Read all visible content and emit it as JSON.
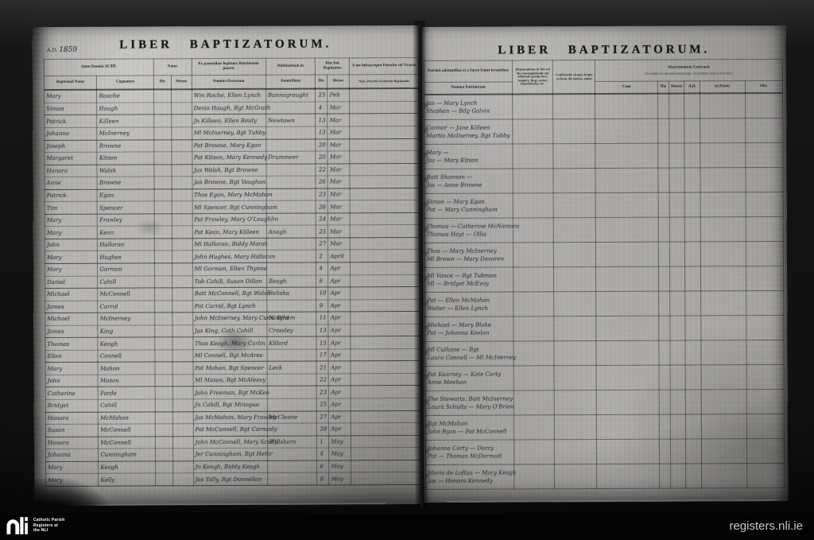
{
  "colors": {
    "paper": "#b3b1ae",
    "background": "#0b0b0b",
    "footer_bar": "#040404"
  },
  "left_page": {
    "ad_label": "A.D.",
    "ad_value": "1859",
    "title": "LIBER BAPTIZATORUM.",
    "header": {
      "anno_printed": "Anno Domini 18",
      "anno_hand": "59.",
      "natus_group": "Natus",
      "die": "Die",
      "mense": "Mense",
      "col_name": "Baptismal Name",
      "col_surname": "Cognomen",
      "parents_group": "Ex parentibus legitimis Matrimonio junctis",
      "parents_sub": "Nomina Parentum",
      "habit_group": "Habitantium in",
      "domicile_sub": "Domicilium",
      "rite_group": "Rite fuit Baptizatus",
      "minister_group": "A me infrascripto Parocho vel Vicario",
      "minister_sub": "Nom. Parochi vel alterius Baptizantis"
    },
    "rows": [
      {
        "name": "Mary",
        "surname": "Roache",
        "parents": "Wm Roche, Ellen Lynch",
        "domicile": "Bunnagraught",
        "die": "25",
        "mense": "Feb"
      },
      {
        "name": "Simon",
        "surname": "Haugh",
        "parents": "Denis Haugh, Bgt McGrath",
        "domicile": "",
        "die": "4",
        "mense": "Mar"
      },
      {
        "name": "Patrick",
        "surname": "Killeen",
        "parents": "Jn Killeen, Ellen Reidy",
        "domicile": "Newtown",
        "die": "13",
        "mense": "Mar"
      },
      {
        "name": "Johanna",
        "surname": "McInerney",
        "parents": "Ml McInerney, Bgt Tubby",
        "domicile": "",
        "die": "13",
        "mense": "Mar"
      },
      {
        "name": "Joseph",
        "surname": "Browne",
        "parents": "Pat Browne, Mary Egan",
        "domicile": "",
        "die": "20",
        "mense": "Mar"
      },
      {
        "name": "Margaret",
        "surname": "Kitson",
        "parents": "Pat Kitson, Mary Kennedy",
        "domicile": "Drummeer",
        "die": "20",
        "mense": "Mar"
      },
      {
        "name": "Hanora",
        "surname": "Walsh",
        "parents": "Jas Walsh, Bgt Browne",
        "domicile": "",
        "die": "22",
        "mense": "Mar"
      },
      {
        "name": "Anne",
        "surname": "Browne",
        "parents": "Jas Browne, Bgt Vaughan",
        "domicile": "",
        "die": "26",
        "mense": "Mar"
      },
      {
        "name": "Patrick",
        "surname": "Egan",
        "parents": "Thos Egan, Mary McMahon",
        "domicile": "",
        "die": "23",
        "mense": "Mar"
      },
      {
        "name": "Tim",
        "surname": "Spencer",
        "parents": "Ml Spencer, Bgt Cunningham",
        "domicile": "",
        "die": "26",
        "mense": "Mar"
      },
      {
        "name": "Mary",
        "surname": "Frawley",
        "parents": "Pat Frawley, Mary O'Loughlin",
        "domicile": "",
        "die": "24",
        "mense": "Mar"
      },
      {
        "name": "Mary",
        "surname": "Kean",
        "parents": "Pat Kean, Mary Killeen",
        "domicile": "Anagh",
        "die": "25",
        "mense": "Mar"
      },
      {
        "name": "John",
        "surname": "Halloran",
        "parents": "Ml Halloran, Biddy Marsh",
        "domicile": "",
        "die": "27",
        "mense": "Mar"
      },
      {
        "name": "Mary",
        "surname": "Hughes",
        "parents": "John Hughes, Mary Halloran",
        "domicile": "",
        "die": "2",
        "mense": "April"
      },
      {
        "name": "Mary",
        "surname": "Gorman",
        "parents": "Ml Gorman, Ellen Thynne",
        "domicile": "",
        "die": "4",
        "mense": "Apr"
      },
      {
        "name": "Daniel",
        "surname": "Cahill",
        "parents": "Tob Cahill, Susan Dillon",
        "domicile": "Beagh",
        "die": "6",
        "mense": "Apr"
      },
      {
        "name": "Michael",
        "surname": "McConnell",
        "parents": "Batt McConnell, Bgt Walsh",
        "domicile": "Relisha",
        "die": "10",
        "mense": "Apr"
      },
      {
        "name": "James",
        "surname": "Carrol",
        "parents": "Pat Carrol, Bgt Lynch",
        "domicile": "",
        "die": "9",
        "mense": "Apr"
      },
      {
        "name": "Michael",
        "surname": "McInerney",
        "parents": "John McInerney, Mary Cunningham",
        "domicile": "N. Bird",
        "die": "11",
        "mense": "Apr"
      },
      {
        "name": "James",
        "surname": "King",
        "parents": "Jas King, Cath Cahill",
        "domicile": "Crossley",
        "die": "13",
        "mense": "Apr"
      },
      {
        "name": "Thomas",
        "surname": "Keogh",
        "parents": "Thos Keogh, Mary Carlin",
        "domicile": "Killard",
        "die": "15",
        "mense": "Apr"
      },
      {
        "name": "Ellen",
        "surname": "Connell",
        "parents": "Ml Connell, Bgt McAree",
        "domicile": "",
        "die": "17",
        "mense": "Apr"
      },
      {
        "name": "Mary",
        "surname": "Mahon",
        "parents": "Pat Mahon, Bgt Spencer",
        "domicile": "Leck",
        "die": "21",
        "mense": "Apr"
      },
      {
        "name": "John",
        "surname": "Mason",
        "parents": "Ml Mason, Bgt McAleavy",
        "domicile": "",
        "die": "22",
        "mense": "Apr"
      },
      {
        "name": "Catherine",
        "surname": "Forde",
        "parents": "John Freeman, Bgt McKee",
        "domicile": "",
        "die": "23",
        "mense": "Apr"
      },
      {
        "name": "Bridget",
        "surname": "Cahill",
        "parents": "Jn Cahill, Bgt Minogue",
        "domicile": "",
        "die": "25",
        "mense": "Apr"
      },
      {
        "name": "Honora",
        "surname": "McMahon",
        "parents": "Jas McMahon, Mary Frawley",
        "domicile": "McCleane",
        "die": "27",
        "mense": "Apr"
      },
      {
        "name": "Susan",
        "surname": "McConnell",
        "parents": "Pat McConnell, Bgt Carmody",
        "domicile": "",
        "die": "28",
        "mense": "Apr"
      },
      {
        "name": "Honora",
        "surname": "McConnell",
        "parents": "John McConnell, Mary Scully",
        "domicile": "Willsboro",
        "die": "1",
        "mense": "May"
      },
      {
        "name": "Johanna",
        "surname": "Cunningham",
        "parents": "Jer Cunningham, Bgt Hehir",
        "domicile": "",
        "die": "4",
        "mense": "May"
      },
      {
        "name": "Mary",
        "surname": "Keogh",
        "parents": "Jn Keogh, Biddy Keogh",
        "domicile": "",
        "die": "6",
        "mense": "May"
      },
      {
        "name": "Mary",
        "surname": "Kelly",
        "parents": "Jas Tally, Bgt Donnellan",
        "domicile": "",
        "die": "8",
        "mense": "May"
      }
    ]
  },
  "right_page": {
    "title": "LIBER BAPTIZATORUM.",
    "header": {
      "sponsors_group": "Patrinis adstantibus et a Sacro Fonte levantibus",
      "sponsors_sub": "Nomina Patrinorum",
      "dispensations": "Dispensationes in 3tio vel 4to consanguinitatis aut affinitatis gradu, loco, tempore, Regr. exstat, impedimenta, etc.",
      "confirmation": "Confirmatio (A quo, in qua ecclesia, die mensis, anno)",
      "marriage_group": "Matrimonium Contraxit",
      "marriage_note": "(Vel adspice si adnotationem peragit, vel probante annexis facta fuit.)",
      "cum": "Cum",
      "die": "Die",
      "mense": "Mense",
      "ad": "A.D.",
      "in_paroe": "In Paroe.",
      "obs": "Obs."
    },
    "rows": [
      {
        "sponsors": [
          "Jas — Mary Lynch",
          "Stephen — Bdg Galvin"
        ]
      },
      {
        "sponsors": [
          "Connor — Jane Killeen",
          "Martin McInerney, Bgt Tubby"
        ]
      },
      {
        "sponsors": [
          "Mary —",
          "Jas — Mary Kitson"
        ]
      },
      {
        "sponsors": [
          "Batt Shannon —",
          "Jas — Anne Browne"
        ]
      },
      {
        "sponsors": [
          "Simon — Mary Egan",
          "Pat — Mary Cunningham"
        ]
      },
      {
        "sponsors": [
          "Thomas — Catherine McNamara",
          "Thomas Hoyt — Ollia"
        ]
      },
      {
        "sponsors": [
          "Thos — Mary McInerney",
          "Ml Brown — Mary Davoren"
        ]
      },
      {
        "sponsors": [
          "Ml Vance — Bgt Tubman",
          "Ml — Bridget McEvoy"
        ]
      },
      {
        "sponsors": [
          "Pat — Ellen McMahon",
          "Walter — Ellen Lynch"
        ]
      },
      {
        "sponsors": [
          "Michael — Mary Blake",
          "Pat — Johanna Keelan"
        ]
      },
      {
        "sponsors": [
          "Ml Culhane — Bgt",
          "Laura Connell — Ml McInerney"
        ]
      },
      {
        "sponsors": [
          "Pat Kearney — Kate Carty",
          "Anne Meehan"
        ]
      },
      {
        "sponsors": [
          "The Stewarts, Batt McInerney",
          "Laura Schultz — Mary O'Brien"
        ]
      },
      {
        "sponsors": [
          "Bgt McMahon",
          "John Ryan — Pat McConnell"
        ]
      },
      {
        "sponsors": [
          "Johanna Carty — Darcy",
          "Pat — Thomas McDermott"
        ]
      },
      {
        "sponsors": [
          "Maria de Loftus — Mary Keogh",
          "Jas — Honora Kennedy"
        ]
      }
    ]
  },
  "footer": {
    "logo": "nli-logo",
    "org_lines": [
      "Catholic Parish",
      "Registers at",
      "the NLI"
    ],
    "site": "registers.nli.ie"
  }
}
